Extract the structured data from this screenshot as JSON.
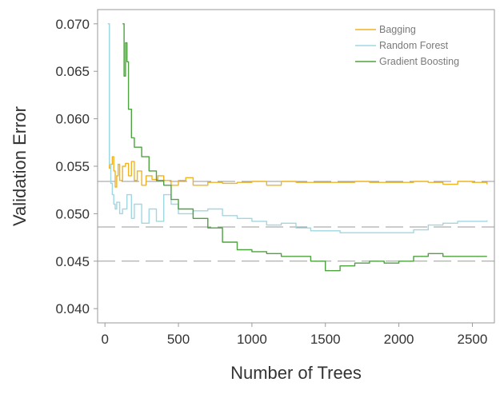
{
  "chart_data": {
    "type": "line",
    "xlabel": "Number of Trees",
    "ylabel": "Validation Error",
    "xlim": [
      -50,
      2650
    ],
    "ylim": [
      0.0385,
      0.0715
    ],
    "xticks": [
      0,
      500,
      1000,
      1500,
      2000,
      2500
    ],
    "yticks": [
      0.04,
      0.045,
      0.05,
      0.055,
      0.06,
      0.065,
      0.07
    ],
    "xtick_labels": [
      "0",
      "500",
      "1000",
      "1500",
      "2000",
      "2500"
    ],
    "ytick_labels": [
      "0.040",
      "0.045",
      "0.050",
      "0.055",
      "0.060",
      "0.065",
      "0.070"
    ],
    "grid": false,
    "legend_position": "top-right",
    "reference_lines": [
      {
        "y": 0.0534,
        "color": "#9a9a9a",
        "style": "dashed"
      },
      {
        "y": 0.0486,
        "color": "#9a9a9a",
        "style": "dashed"
      },
      {
        "y": 0.045,
        "color": "#9a9a9a",
        "style": "dashed"
      }
    ],
    "series": [
      {
        "name": "Bagging",
        "color": "#f0b322",
        "x": [
          20,
          30,
          40,
          50,
          60,
          70,
          80,
          90,
          100,
          120,
          140,
          160,
          180,
          200,
          220,
          250,
          280,
          320,
          360,
          400,
          450,
          500,
          550,
          600,
          700,
          800,
          900,
          1000,
          1100,
          1200,
          1300,
          1400,
          1500,
          1600,
          1700,
          1800,
          1900,
          2000,
          2100,
          2200,
          2300,
          2400,
          2500,
          2600
        ],
        "y": [
          0.07,
          0.0548,
          0.0552,
          0.056,
          0.0545,
          0.0528,
          0.054,
          0.0552,
          0.0535,
          0.055,
          0.0553,
          0.054,
          0.0555,
          0.0535,
          0.0545,
          0.053,
          0.054,
          0.0536,
          0.054,
          0.0535,
          0.053,
          0.0535,
          0.0538,
          0.053,
          0.0533,
          0.0532,
          0.0533,
          0.0534,
          0.053,
          0.0534,
          0.0533,
          0.0533,
          0.0533,
          0.0533,
          0.0534,
          0.0533,
          0.0533,
          0.0533,
          0.0534,
          0.0533,
          0.0531,
          0.0534,
          0.0533,
          0.0531
        ]
      },
      {
        "name": "Random Forest",
        "color": "#9fd8e2",
        "x": [
          20,
          30,
          40,
          50,
          60,
          70,
          80,
          100,
          120,
          150,
          180,
          200,
          250,
          300,
          350,
          400,
          450,
          500,
          600,
          700,
          800,
          900,
          1000,
          1100,
          1200,
          1300,
          1400,
          1500,
          1600,
          1700,
          1800,
          1900,
          2000,
          2100,
          2200,
          2300,
          2400,
          2500,
          2600
        ],
        "y": [
          0.07,
          0.0552,
          0.0532,
          0.052,
          0.051,
          0.0505,
          0.0512,
          0.05,
          0.0505,
          0.052,
          0.0495,
          0.051,
          0.049,
          0.0505,
          0.0492,
          0.052,
          0.051,
          0.05,
          0.0503,
          0.0505,
          0.0498,
          0.0495,
          0.0492,
          0.0488,
          0.049,
          0.0485,
          0.0482,
          0.0482,
          0.048,
          0.048,
          0.048,
          0.048,
          0.048,
          0.0483,
          0.0488,
          0.049,
          0.0492,
          0.0492,
          0.0493
        ]
      },
      {
        "name": "Gradient Boosting",
        "color": "#4ea23f",
        "x": [
          120,
          130,
          140,
          150,
          160,
          180,
          200,
          250,
          300,
          350,
          400,
          450,
          500,
          600,
          700,
          800,
          900,
          1000,
          1100,
          1200,
          1300,
          1400,
          1500,
          1600,
          1700,
          1800,
          1900,
          2000,
          2100,
          2200,
          2300,
          2400,
          2500,
          2600
        ],
        "y": [
          0.07,
          0.0645,
          0.068,
          0.066,
          0.061,
          0.058,
          0.057,
          0.056,
          0.0545,
          0.0535,
          0.053,
          0.0515,
          0.0505,
          0.0495,
          0.0485,
          0.047,
          0.0462,
          0.046,
          0.0458,
          0.0455,
          0.0455,
          0.045,
          0.044,
          0.0445,
          0.0448,
          0.045,
          0.0448,
          0.045,
          0.0455,
          0.0458,
          0.0455,
          0.0455,
          0.0455,
          0.0455
        ]
      }
    ]
  }
}
